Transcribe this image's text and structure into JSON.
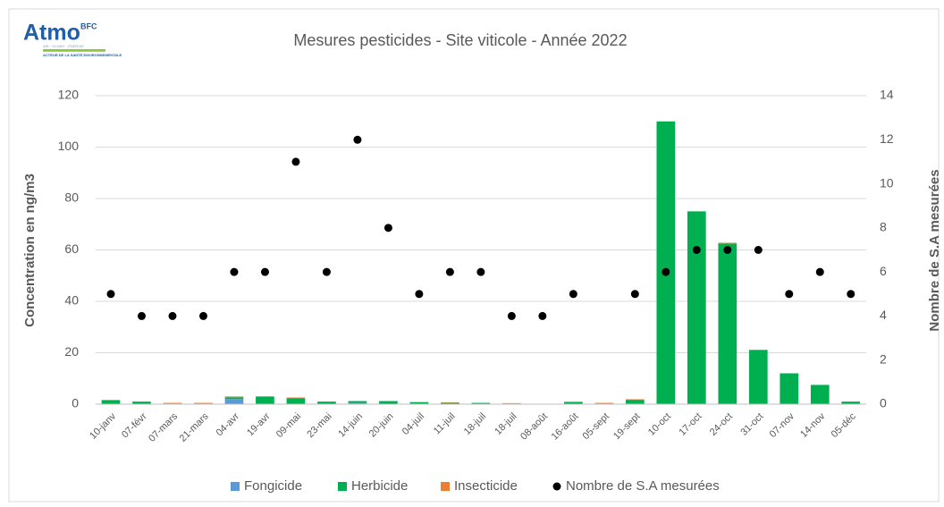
{
  "logo": {
    "name": "Atmo",
    "region": "BFC",
    "tagline": "AIR · CLIMAT · ÉNERGIE",
    "motto": "ACTEUR DE LA SANTÉ ENVIRONNEMENTALE"
  },
  "chart_data": {
    "type": "bar",
    "stacked": true,
    "title": "Mesures pesticides - Site viticole - Année 2022",
    "y_label": "Concentration en ng/m3",
    "y2_label": "Nombre de S.A mesurées",
    "categories": [
      "10-janv",
      "07-févr",
      "07-mars",
      "21-mars",
      "04-avr",
      "19-avr",
      "09-mai",
      "23-mai",
      "14-juin",
      "20-juin",
      "04-juil",
      "11-juil",
      "18-juil",
      "18-juil",
      "08-août",
      "16-août",
      "05-sept",
      "19-sept",
      "10-oct",
      "17-oct",
      "24-oct",
      "31-oct",
      "07-nov",
      "14-nov",
      "05-déc"
    ],
    "series": [
      {
        "name": "Fongicide",
        "color": "#5b9bd5",
        "values": [
          0.1,
          0,
          0,
          0,
          2,
          0,
          0,
          0,
          0.5,
          0,
          0.2,
          0,
          0,
          0,
          0,
          0.1,
          0,
          0,
          0,
          0,
          0,
          0,
          0,
          0,
          0
        ]
      },
      {
        "name": "Herbicide",
        "color": "#00b050",
        "values": [
          1.5,
          1,
          0.2,
          0.2,
          0.7,
          3,
          2.3,
          1,
          0.7,
          1.2,
          0.6,
          0.5,
          0.5,
          0.2,
          0,
          0.8,
          0.2,
          1.7,
          110,
          75,
          62.5,
          21,
          12,
          7.5,
          1
        ]
      },
      {
        "name": "Insecticide",
        "color": "#ed7d31",
        "values": [
          0,
          0,
          0.3,
          0.3,
          0.3,
          0,
          0.3,
          0,
          0,
          0,
          0,
          0.2,
          0,
          0.2,
          0,
          0,
          0.3,
          0.2,
          0,
          0,
          0.3,
          0.2,
          0,
          0,
          0
        ]
      },
      {
        "name": "Nombre de S.A mesurées",
        "color": "#000000",
        "type": "scatter",
        "axis": "y2",
        "values": [
          5,
          4,
          4,
          4,
          6,
          6,
          11,
          6,
          12,
          8,
          5,
          6,
          6,
          4,
          4,
          5,
          null,
          5,
          6,
          7,
          7,
          7,
          5,
          6,
          5
        ]
      }
    ],
    "ylim": [
      0,
      120
    ],
    "yticks": [
      0,
      20,
      40,
      60,
      80,
      100,
      120
    ],
    "y2lim": [
      0,
      14
    ],
    "y2ticks": [
      0,
      2,
      4,
      6,
      8,
      10,
      12,
      14
    ],
    "grid": true,
    "legend": "bottom"
  }
}
